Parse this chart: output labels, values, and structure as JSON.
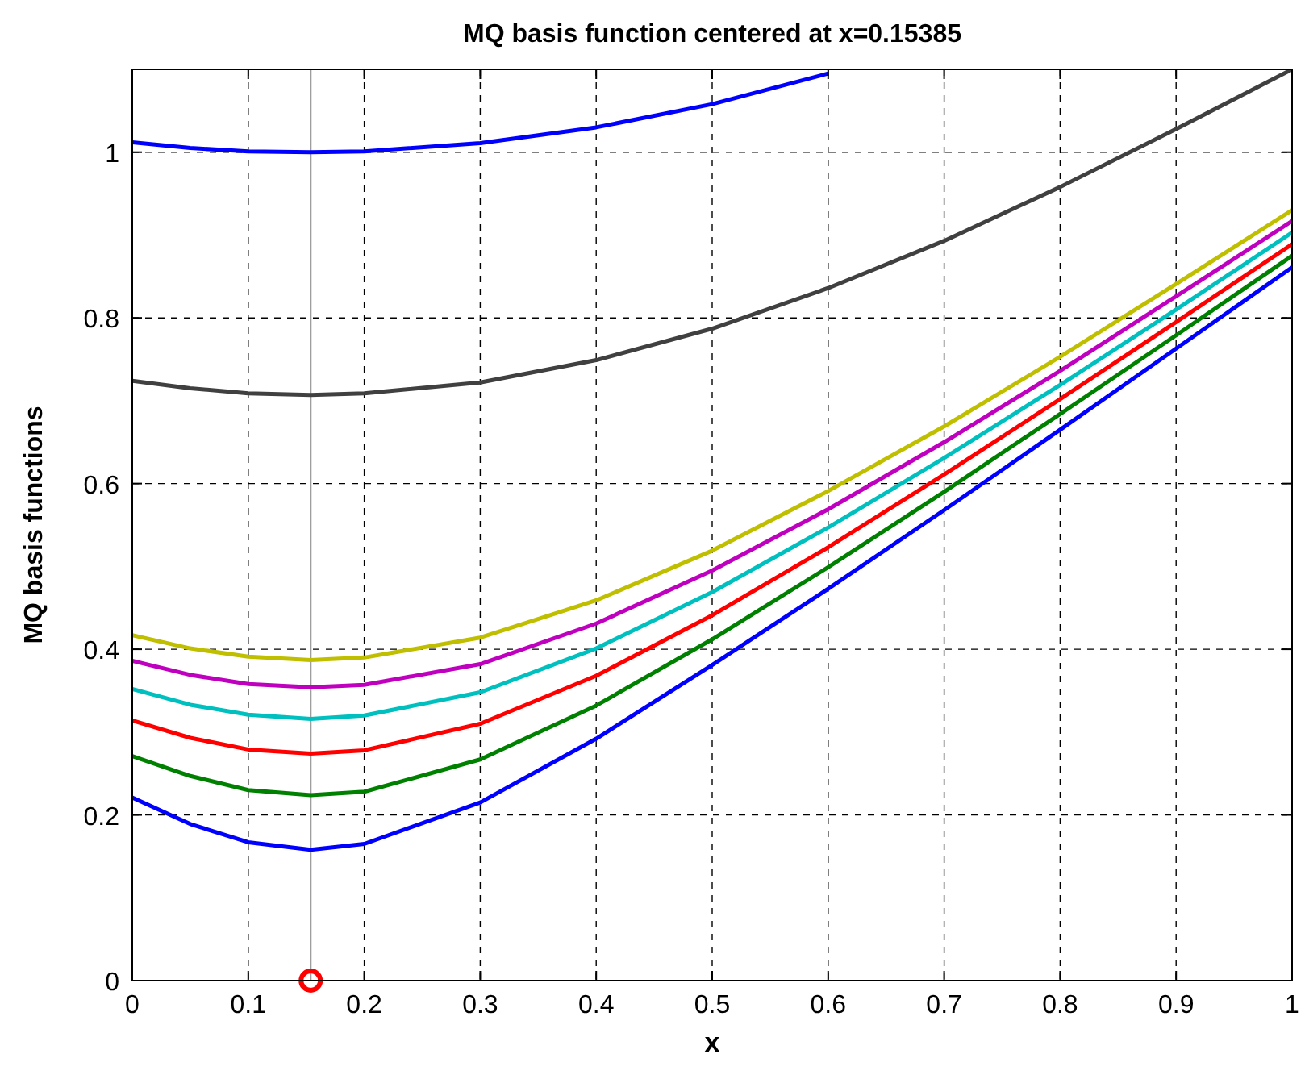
{
  "chart_data": {
    "type": "line",
    "title": "MQ basis function centered at x=0.15385",
    "xlabel": "x",
    "ylabel": "MQ basis functions",
    "x": [
      0,
      0.05,
      0.1,
      0.15385,
      0.2,
      0.3,
      0.4,
      0.5,
      0.6,
      0.7,
      0.8,
      0.9,
      1
    ],
    "series": [
      {
        "color": "#0000ff",
        "values": [
          1.012,
          1.005,
          1.001,
          1.0,
          1.001,
          1.011,
          1.03,
          1.058,
          1.095,
          null,
          null,
          null,
          null
        ]
      },
      {
        "color": "#404040",
        "values": [
          0.724,
          0.715,
          0.709,
          0.707,
          0.709,
          0.722,
          0.749,
          0.787,
          0.836,
          0.893,
          0.958,
          1.028,
          1.1
        ]
      },
      {
        "color": "#bfbf00",
        "values": [
          0.417,
          0.401,
          0.391,
          0.387,
          0.39,
          0.414,
          0.459,
          0.519,
          0.591,
          0.669,
          0.753,
          0.841,
          0.93
        ]
      },
      {
        "color": "#bf00bf",
        "values": [
          0.386,
          0.369,
          0.358,
          0.354,
          0.357,
          0.382,
          0.431,
          0.495,
          0.569,
          0.65,
          0.736,
          0.826,
          0.917
        ]
      },
      {
        "color": "#00bfbf",
        "values": [
          0.352,
          0.333,
          0.321,
          0.316,
          0.32,
          0.348,
          0.401,
          0.469,
          0.547,
          0.631,
          0.719,
          0.81,
          0.903
        ]
      },
      {
        "color": "#ff0000",
        "values": [
          0.314,
          0.293,
          0.279,
          0.274,
          0.278,
          0.31,
          0.368,
          0.441,
          0.523,
          0.611,
          0.702,
          0.795,
          0.889
        ]
      },
      {
        "color": "#008000",
        "values": [
          0.271,
          0.247,
          0.23,
          0.224,
          0.228,
          0.267,
          0.332,
          0.412,
          0.499,
          0.59,
          0.684,
          0.779,
          0.875
        ]
      },
      {
        "color": "#0000ff",
        "values": [
          0.221,
          0.189,
          0.167,
          0.158,
          0.165,
          0.215,
          0.292,
          0.381,
          0.473,
          0.568,
          0.665,
          0.763,
          0.861
        ]
      },
      {
        "type": "scatter",
        "color": "#ff0000",
        "marker": "circle",
        "x": [
          0.15385
        ],
        "values": [
          0
        ]
      }
    ],
    "ref_lines": [
      {
        "axis": "x",
        "value": 0.15385,
        "color": "#808080"
      }
    ],
    "xlim": [
      0,
      1
    ],
    "ylim": [
      0,
      1.1
    ],
    "xticks": [
      0,
      0.1,
      0.2,
      0.3,
      0.4,
      0.5,
      0.6,
      0.7,
      0.8,
      0.9,
      1
    ],
    "yticks": [
      0,
      0.2,
      0.4,
      0.6,
      0.8,
      1
    ],
    "grid": true,
    "line_style": "solid"
  }
}
